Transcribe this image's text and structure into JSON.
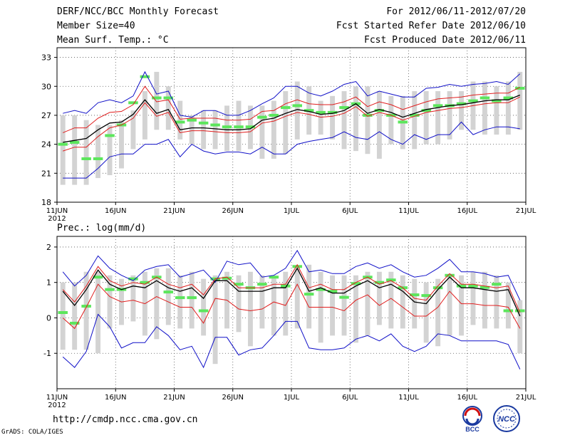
{
  "header": {
    "title": "DERF/NCC/BCC Monthly Forecast",
    "member_size": "Member Size=40",
    "variable": "Mean Surf. Temp.: °C",
    "period": "For 2012/06/11-2012/07/20",
    "fcst_started": "Fcst Started Refer Date 2012/06/10",
    "fcst_produced": "Fcst Produced Date 2012/06/11"
  },
  "footer": {
    "url": "http://cmdp.ncc.cma.gov.cn",
    "grads": "GrADS: COLA/IGES",
    "logo_bcc": "BCC",
    "logo_ncc": "NCC"
  },
  "colors": {
    "box": "#d3d3d3",
    "median": "#5ce65c",
    "mean": "#000000",
    "spread": "#e01e1e",
    "extreme": "#1010c8"
  },
  "chart_data": [
    {
      "type": "line",
      "panel": "temperature",
      "title": "Mean Surf. Temp.: °C",
      "ylim": [
        18,
        34
      ],
      "yticks": [
        18,
        21,
        24,
        27,
        30,
        33
      ],
      "xticks": [
        {
          "day": 0,
          "label": "11JUN",
          "sub": "2012"
        },
        {
          "day": 5,
          "label": "16JUN"
        },
        {
          "day": 10,
          "label": "21JUN"
        },
        {
          "day": 15,
          "label": "26JUN"
        },
        {
          "day": 20,
          "label": "1JUL"
        },
        {
          "day": 25,
          "label": "6JUL"
        },
        {
          "day": 30,
          "label": "11JUL"
        },
        {
          "day": 35,
          "label": "16JUL"
        },
        {
          "day": 40,
          "label": "21JUL"
        }
      ],
      "grid": true,
      "box_low": [
        19.8,
        19.8,
        19.8,
        20.5,
        20.8,
        21.5,
        23.5,
        24.5,
        25.5,
        25.5,
        24.5,
        24.0,
        23.5,
        23.5,
        23.3,
        23.3,
        23.5,
        22.5,
        22.5,
        23.0,
        24.5,
        25.0,
        25.0,
        24.5,
        23.5,
        23.3,
        23.0,
        22.5,
        24.0,
        23.5,
        23.5,
        24.0,
        24.0,
        24.5,
        25.5,
        25.5,
        25.0,
        25.0,
        25.0,
        25.5
      ],
      "box_high": [
        27.0,
        27.0,
        26.5,
        26.0,
        26.0,
        26.5,
        27.5,
        29.5,
        31.5,
        30.0,
        28.5,
        27.0,
        27.5,
        27.5,
        28.0,
        28.5,
        28.0,
        28.0,
        28.5,
        29.5,
        30.5,
        30.0,
        28.5,
        29.0,
        29.5,
        30.0,
        30.0,
        29.5,
        29.0,
        29.0,
        29.5,
        29.5,
        29.5,
        29.5,
        29.5,
        30.5,
        30.5,
        30.0,
        30.5,
        31.5
      ],
      "median": [
        24.0,
        24.2,
        22.5,
        22.5,
        24.9,
        26.0,
        28.3,
        31.0,
        28.8,
        28.8,
        26.3,
        26.5,
        26.2,
        26.0,
        25.8,
        25.8,
        25.8,
        26.8,
        27.0,
        27.8,
        28.0,
        27.5,
        27.3,
        27.3,
        27.8,
        28.2,
        27.0,
        27.5,
        27.0,
        26.3,
        27.0,
        27.5,
        28.0,
        28.0,
        28.2,
        28.5,
        28.8,
        28.5,
        28.8,
        29.8
      ],
      "series": [
        {
          "name": "max",
          "color": "#1010c8",
          "values": [
            27.2,
            27.5,
            27.2,
            28.3,
            28.6,
            28.3,
            29.0,
            31.5,
            29.2,
            29.5,
            27.0,
            26.8,
            27.5,
            27.5,
            27.0,
            27.0,
            27.5,
            28.2,
            28.8,
            30.0,
            30.0,
            29.3,
            29.0,
            29.5,
            30.2,
            30.5,
            29.0,
            29.5,
            29.2,
            28.9,
            28.9,
            29.8,
            29.9,
            30.2,
            30.0,
            30.2,
            30.3,
            30.5,
            30.2,
            31.3
          ]
        },
        {
          "name": "mean+sd",
          "color": "#e01e1e",
          "values": [
            25.2,
            25.7,
            25.7,
            26.7,
            27.3,
            27.4,
            28.1,
            30.0,
            28.4,
            28.6,
            26.6,
            26.7,
            26.7,
            26.7,
            26.5,
            26.5,
            26.6,
            27.4,
            27.5,
            28.2,
            28.6,
            28.2,
            28.1,
            28.1,
            28.4,
            28.9,
            27.9,
            28.4,
            28.1,
            27.6,
            28.0,
            28.4,
            28.7,
            28.8,
            28.9,
            29.1,
            29.2,
            29.3,
            29.3,
            29.9
          ]
        },
        {
          "name": "mean",
          "color": "#000000",
          "values": [
            24.2,
            24.4,
            24.6,
            25.5,
            26.2,
            26.3,
            27.1,
            28.6,
            27.2,
            27.6,
            25.5,
            25.7,
            25.7,
            25.6,
            25.5,
            25.5,
            25.6,
            26.5,
            26.7,
            27.2,
            27.6,
            27.4,
            27.1,
            27.2,
            27.5,
            28.2,
            27.2,
            27.6,
            27.3,
            26.8,
            27.2,
            27.6,
            27.8,
            28.0,
            28.1,
            28.3,
            28.5,
            28.6,
            28.6,
            29.1
          ]
        },
        {
          "name": "mean-sd",
          "color": "#e01e1e",
          "values": [
            23.3,
            23.7,
            23.7,
            24.8,
            25.7,
            26.0,
            26.7,
            28.3,
            26.9,
            27.3,
            25.2,
            25.4,
            25.4,
            25.3,
            25.2,
            25.2,
            25.3,
            26.2,
            26.4,
            26.9,
            27.3,
            27.1,
            26.8,
            26.9,
            27.2,
            27.9,
            26.9,
            27.3,
            27.0,
            26.5,
            26.9,
            27.3,
            27.5,
            27.7,
            27.8,
            28.0,
            28.2,
            28.3,
            28.3,
            28.9
          ]
        },
        {
          "name": "min",
          "color": "#1010c8",
          "values": [
            20.5,
            20.5,
            20.5,
            21.5,
            22.7,
            23.0,
            23.0,
            24.0,
            24.0,
            24.5,
            22.7,
            24.0,
            23.3,
            23.0,
            23.2,
            23.2,
            23.0,
            23.7,
            23.0,
            23.0,
            24.0,
            24.3,
            24.5,
            24.7,
            25.3,
            24.7,
            24.5,
            25.3,
            24.5,
            24.0,
            25.0,
            24.5,
            25.0,
            25.0,
            26.3,
            25.0,
            25.5,
            25.8,
            25.8,
            25.6
          ]
        }
      ]
    },
    {
      "type": "line",
      "panel": "precipitation",
      "title": "Prec.: log(mm/d)",
      "ylim": [
        -2,
        2.3
      ],
      "yticks": [
        -1,
        0,
        1,
        2
      ],
      "xticks": [
        {
          "day": 0,
          "label": "11JUN",
          "sub": "2012"
        },
        {
          "day": 5,
          "label": "16JUN"
        },
        {
          "day": 10,
          "label": "21JUN"
        },
        {
          "day": 15,
          "label": "26JUN"
        },
        {
          "day": 20,
          "label": "1JUL"
        },
        {
          "day": 25,
          "label": "6JUL"
        },
        {
          "day": 30,
          "label": "11JUL"
        },
        {
          "day": 35,
          "label": "16JUL"
        },
        {
          "day": 40,
          "label": "21JUL"
        }
      ],
      "grid": true,
      "box_low": [
        -0.9,
        -0.9,
        -0.9,
        -1.0,
        -0.3,
        -0.2,
        -0.1,
        -0.5,
        -0.6,
        -0.2,
        -0.3,
        -0.3,
        -0.5,
        -1.3,
        -0.3,
        -0.4,
        -0.8,
        -0.3,
        -0.5,
        -0.5,
        -0.3,
        -0.3,
        -0.7,
        -0.5,
        -0.5,
        -0.7,
        -0.5,
        -0.2,
        -0.3,
        -0.3,
        -0.3,
        -0.7,
        -0.8,
        -0.5,
        -0.5,
        -0.2,
        -0.3,
        -0.3,
        -0.3,
        -1.0
      ],
      "box_high": [
        1.0,
        1.0,
        1.3,
        1.3,
        1.2,
        1.1,
        1.2,
        1.3,
        1.4,
        1.4,
        1.2,
        1.3,
        1.1,
        1.2,
        1.3,
        1.2,
        1.3,
        1.2,
        1.2,
        1.3,
        1.4,
        1.5,
        1.3,
        1.2,
        1.2,
        1.2,
        1.3,
        1.3,
        1.3,
        1.2,
        1.1,
        1.0,
        1.1,
        1.2,
        1.2,
        1.3,
        1.3,
        1.2,
        1.0,
        0.5
      ],
      "median": [
        0.15,
        -0.15,
        0.33,
        1.15,
        0.8,
        0.8,
        1.1,
        1.0,
        1.15,
        0.73,
        0.57,
        0.57,
        0.2,
        1.1,
        1.12,
        0.95,
        0.85,
        0.95,
        1.15,
        0.9,
        1.45,
        0.67,
        0.8,
        0.75,
        0.58,
        0.97,
        1.15,
        1.0,
        1.07,
        0.85,
        0.65,
        0.63,
        0.85,
        1.2,
        0.9,
        0.9,
        0.86,
        0.95,
        0.2,
        0.2
      ],
      "series": [
        {
          "name": "max",
          "color": "#1010c8",
          "values": [
            1.3,
            0.9,
            1.2,
            1.75,
            1.4,
            1.2,
            1.05,
            1.35,
            1.45,
            1.5,
            1.15,
            1.25,
            1.35,
            1.0,
            1.6,
            1.5,
            1.55,
            1.15,
            1.2,
            1.4,
            1.9,
            1.3,
            1.35,
            1.25,
            1.25,
            1.45,
            1.55,
            1.4,
            1.5,
            1.3,
            1.15,
            1.2,
            1.4,
            1.65,
            1.3,
            1.3,
            1.25,
            1.15,
            1.2,
            0.5
          ]
        },
        {
          "name": "mean+sd",
          "color": "#e01e1e",
          "values": [
            0.8,
            0.45,
            0.9,
            1.45,
            1.05,
            0.9,
            1.0,
            0.95,
            1.15,
            0.95,
            0.85,
            0.95,
            0.65,
            1.1,
            1.15,
            0.85,
            0.85,
            0.85,
            0.95,
            0.95,
            1.5,
            0.85,
            0.95,
            0.8,
            0.8,
            1.0,
            1.15,
            0.95,
            1.05,
            0.85,
            0.55,
            0.5,
            0.9,
            1.25,
            0.95,
            0.95,
            0.9,
            0.85,
            0.9,
            0.15
          ]
        },
        {
          "name": "mean",
          "color": "#000000",
          "values": [
            0.75,
            0.35,
            0.8,
            1.35,
            0.95,
            0.8,
            0.9,
            0.85,
            1.05,
            0.85,
            0.75,
            0.85,
            0.55,
            1.05,
            1.05,
            0.75,
            0.75,
            0.75,
            0.85,
            0.85,
            1.4,
            0.75,
            0.85,
            0.7,
            0.7,
            0.9,
            1.05,
            0.85,
            0.95,
            0.75,
            0.45,
            0.4,
            0.8,
            1.15,
            0.85,
            0.85,
            0.8,
            0.75,
            0.8,
            0.05
          ]
        },
        {
          "name": "mean-sd",
          "color": "#e01e1e",
          "values": [
            0.0,
            -0.3,
            0.3,
            0.95,
            0.6,
            0.45,
            0.5,
            0.4,
            0.6,
            0.45,
            0.3,
            0.3,
            -0.15,
            0.55,
            0.5,
            0.25,
            0.2,
            0.25,
            0.45,
            0.35,
            0.95,
            0.3,
            0.3,
            0.3,
            0.2,
            0.5,
            0.65,
            0.35,
            0.55,
            0.3,
            0.05,
            0.05,
            0.3,
            0.75,
            0.4,
            0.4,
            0.35,
            0.35,
            0.3,
            -0.3
          ]
        },
        {
          "name": "min",
          "color": "#1010c8",
          "values": [
            -1.1,
            -1.4,
            -0.95,
            0.1,
            -0.25,
            -0.85,
            -0.7,
            -0.7,
            -0.25,
            -0.5,
            -0.9,
            -0.8,
            -1.4,
            -0.55,
            -0.55,
            -1.05,
            -0.9,
            -0.85,
            -0.5,
            -0.1,
            -0.1,
            -0.85,
            -0.9,
            -0.9,
            -0.85,
            -0.6,
            -0.5,
            -0.65,
            -0.45,
            -0.8,
            -0.95,
            -0.8,
            -0.45,
            -0.5,
            -0.65,
            -0.65,
            -0.65,
            -0.65,
            -0.75,
            -1.45
          ]
        }
      ]
    }
  ]
}
